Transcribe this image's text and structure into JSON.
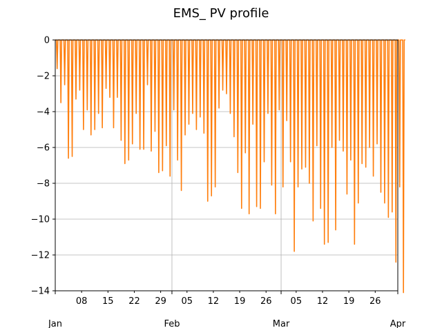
{
  "chart_data": {
    "type": "line",
    "title": "EMS_ PV profile",
    "xlabel": "",
    "ylabel": "",
    "ylim": [
      -14,
      0
    ],
    "grid": true,
    "legend": "none",
    "line_color": "#ff7f0e",
    "grid_color": "#b0b0b0",
    "x_range": [
      "2024-01-01",
      "2024-04-01"
    ],
    "y_ticks": [
      0,
      -2,
      -4,
      -6,
      -8,
      -10,
      -12,
      -14
    ],
    "y_tick_labels": [
      "0",
      "−2",
      "−4",
      "−6",
      "−8",
      "−10",
      "−12",
      "−14"
    ],
    "x_minor_ticks": [
      {
        "date": "2024-01-08",
        "label": "08"
      },
      {
        "date": "2024-01-15",
        "label": "15"
      },
      {
        "date": "2024-01-22",
        "label": "22"
      },
      {
        "date": "2024-01-29",
        "label": "29"
      },
      {
        "date": "2024-02-05",
        "label": "05"
      },
      {
        "date": "2024-02-12",
        "label": "12"
      },
      {
        "date": "2024-02-19",
        "label": "19"
      },
      {
        "date": "2024-02-26",
        "label": "26"
      },
      {
        "date": "2024-03-05",
        "label": "05"
      },
      {
        "date": "2024-03-12",
        "label": "12"
      },
      {
        "date": "2024-03-19",
        "label": "19"
      },
      {
        "date": "2024-03-26",
        "label": "26"
      }
    ],
    "x_major_ticks": [
      {
        "date": "2024-01-01",
        "label": "Jan"
      },
      {
        "date": "2024-02-01",
        "label": "Feb"
      },
      {
        "date": "2024-03-01",
        "label": "Mar"
      },
      {
        "date": "2024-04-01",
        "label": "Apr"
      }
    ],
    "series": [
      {
        "daily_peak_date_start": "2024-01-01",
        "daily_min_values": [
          -1.6,
          -3.5,
          -2.5,
          -6.6,
          -6.5,
          -3.3,
          -2.8,
          -5.0,
          -3.9,
          -5.3,
          -5.0,
          -4.1,
          -4.9,
          -2.7,
          -3.2,
          -4.9,
          -3.2,
          -5.6,
          -6.9,
          -6.7,
          -5.8,
          -4.1,
          -6.1,
          -6.1,
          -2.5,
          -6.2,
          -5.1,
          -7.4,
          -7.3,
          -5.9,
          -7.6,
          -3.9,
          -6.7,
          -8.4,
          -5.3,
          -4.7,
          -4.1,
          -5.0,
          -4.3,
          -5.2,
          -9.0,
          -8.7,
          -8.2,
          -3.8,
          -2.8,
          -3.0,
          -4.1,
          -5.4,
          -7.4,
          -9.4,
          -6.3,
          -9.7,
          -4.7,
          -9.3,
          -9.4,
          -6.8,
          -4.1,
          -8.1,
          -9.7,
          -3.9,
          -8.2,
          -4.5,
          -6.8,
          -11.8,
          -8.2,
          -7.2,
          -7.1,
          -8.0,
          -10.1,
          -5.9,
          -9.4,
          -11.4,
          -11.3,
          -6.0,
          -10.6,
          -5.6,
          -6.2,
          -8.6,
          -6.7,
          -11.4,
          -9.1,
          -6.9,
          -7.1,
          -6.0,
          -7.6,
          -5.8,
          -8.5,
          -9.1,
          -9.9,
          -9.6,
          -12.4,
          -8.2,
          -14.1
        ],
        "values": []
      }
    ]
  }
}
